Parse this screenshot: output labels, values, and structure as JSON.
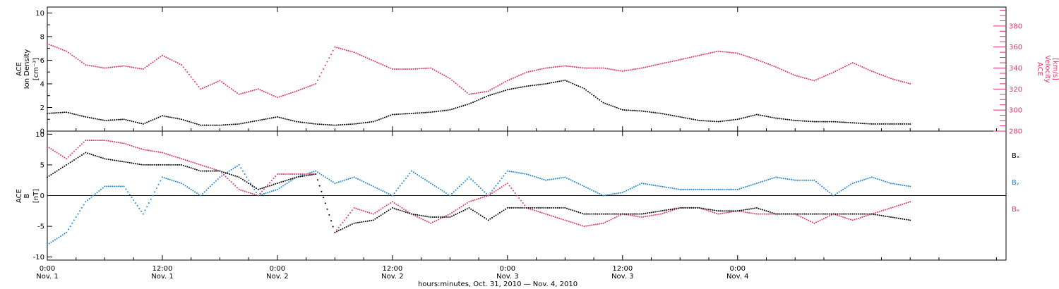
{
  "colors": {
    "black": "#000000",
    "pink": "#e8325f",
    "blue": "#1a86d8"
  },
  "footer": {
    "caption": "hours:minutes, Oct. 31, 2010 — Nov.  4, 2010"
  },
  "chart_data": [
    {
      "type": "scatter",
      "panel": "top",
      "ylabel_left": [
        "ACE",
        "Ion Density",
        "[cm⁻³]"
      ],
      "ylabel_right": [
        "ACE",
        "Velocity",
        "[km/s]"
      ],
      "ylim_left": [
        0,
        10.5
      ],
      "ylim_right": [
        280,
        398
      ],
      "yticks_left": [
        "0",
        "2",
        "4",
        "6",
        "8",
        "10"
      ],
      "yticks_right": [
        "280",
        "300",
        "320",
        "340",
        "360",
        "380"
      ],
      "series": [
        {
          "axis": "left",
          "color": "#000000",
          "points": [
            [
              0,
              1.5
            ],
            [
              2,
              1.6
            ],
            [
              4,
              1.2
            ],
            [
              6,
              0.9
            ],
            [
              8,
              1.0
            ],
            [
              10,
              0.6
            ],
            [
              12,
              1.3
            ],
            [
              14,
              1.0
            ],
            [
              16,
              0.5
            ],
            [
              18,
              0.5
            ],
            [
              20,
              0.6
            ],
            [
              22,
              0.9
            ],
            [
              24,
              1.2
            ],
            [
              26,
              0.8
            ],
            [
              28,
              0.6
            ],
            [
              30,
              0.5
            ],
            [
              32,
              0.6
            ],
            [
              34,
              0.8
            ],
            [
              36,
              1.4
            ],
            [
              38,
              1.5
            ],
            [
              40,
              1.6
            ],
            [
              42,
              1.8
            ],
            [
              44,
              2.3
            ],
            [
              46,
              3.0
            ],
            [
              48,
              3.5
            ],
            [
              50,
              3.8
            ],
            [
              52,
              4.0
            ],
            [
              54,
              4.3
            ],
            [
              56,
              3.6
            ],
            [
              58,
              2.4
            ],
            [
              60,
              1.8
            ],
            [
              62,
              1.7
            ],
            [
              64,
              1.5
            ],
            [
              66,
              1.2
            ],
            [
              68,
              0.9
            ],
            [
              70,
              0.8
            ],
            [
              72,
              1.0
            ],
            [
              74,
              1.4
            ],
            [
              76,
              1.1
            ],
            [
              78,
              0.9
            ],
            [
              80,
              0.8
            ],
            [
              82,
              0.8
            ],
            [
              84,
              0.7
            ],
            [
              86,
              0.6
            ],
            [
              88,
              0.6
            ],
            [
              90,
              0.6
            ]
          ]
        },
        {
          "axis": "right",
          "color": "#e8325f",
          "points": [
            [
              0,
              363
            ],
            [
              2,
              356
            ],
            [
              4,
              343
            ],
            [
              6,
              340
            ],
            [
              8,
              342
            ],
            [
              10,
              339
            ],
            [
              12,
              352
            ],
            [
              14,
              343
            ],
            [
              16,
              320
            ],
            [
              18,
              328
            ],
            [
              20,
              315
            ],
            [
              22,
              320
            ],
            [
              24,
              312
            ],
            [
              26,
              318
            ],
            [
              28,
              325
            ],
            [
              30,
              360
            ],
            [
              32,
              355
            ],
            [
              34,
              347
            ],
            [
              36,
              339
            ],
            [
              38,
              339
            ],
            [
              40,
              340
            ],
            [
              42,
              330
            ],
            [
              44,
              315
            ],
            [
              46,
              318
            ],
            [
              48,
              328
            ],
            [
              50,
              336
            ],
            [
              52,
              340
            ],
            [
              54,
              342
            ],
            [
              56,
              340
            ],
            [
              58,
              340
            ],
            [
              60,
              337
            ],
            [
              62,
              340
            ],
            [
              64,
              344
            ],
            [
              66,
              348
            ],
            [
              68,
              352
            ],
            [
              70,
              356
            ],
            [
              72,
              354
            ],
            [
              74,
              348
            ],
            [
              76,
              341
            ],
            [
              78,
              333
            ],
            [
              80,
              328
            ],
            [
              82,
              336
            ],
            [
              84,
              345
            ],
            [
              86,
              337
            ],
            [
              88,
              330
            ],
            [
              90,
              325
            ]
          ]
        }
      ]
    },
    {
      "type": "scatter",
      "panel": "bottom",
      "ylabel_left": [
        "ACE",
        "B",
        "[nT]"
      ],
      "ylim": [
        -10.5,
        10.5
      ],
      "yticks": [
        "-10",
        "-5",
        "0",
        "5",
        "10"
      ],
      "legend": [
        {
          "label": "Bₓ",
          "color": "#000000"
        },
        {
          "label": "Bᵧ",
          "color": "#1a86d8"
        },
        {
          "label": "Bₔ",
          "color": "#e8325f"
        }
      ],
      "series": [
        {
          "color": "#000000",
          "points": [
            [
              0,
              3
            ],
            [
              2,
              5
            ],
            [
              4,
              7
            ],
            [
              6,
              6
            ],
            [
              8,
              5.5
            ],
            [
              10,
              5
            ],
            [
              12,
              5
            ],
            [
              14,
              5
            ],
            [
              16,
              4
            ],
            [
              18,
              4
            ],
            [
              20,
              3
            ],
            [
              22,
              1
            ],
            [
              24,
              2
            ],
            [
              26,
              3
            ],
            [
              28,
              3.5
            ],
            [
              30,
              -6
            ],
            [
              32,
              -4.5
            ],
            [
              34,
              -4
            ],
            [
              36,
              -2
            ],
            [
              38,
              -3
            ],
            [
              40,
              -3.5
            ],
            [
              42,
              -3.5
            ],
            [
              44,
              -2
            ],
            [
              46,
              -4
            ],
            [
              48,
              -2
            ],
            [
              50,
              -2
            ],
            [
              52,
              -2
            ],
            [
              54,
              -2
            ],
            [
              56,
              -3
            ],
            [
              58,
              -3
            ],
            [
              60,
              -3
            ],
            [
              62,
              -3
            ],
            [
              64,
              -2.5
            ],
            [
              66,
              -2
            ],
            [
              68,
              -2
            ],
            [
              70,
              -2.5
            ],
            [
              72,
              -2.5
            ],
            [
              74,
              -2
            ],
            [
              76,
              -3
            ],
            [
              78,
              -3
            ],
            [
              80,
              -3
            ],
            [
              82,
              -3
            ],
            [
              84,
              -3
            ],
            [
              86,
              -3
            ],
            [
              88,
              -3.5
            ],
            [
              90,
              -4
            ]
          ]
        },
        {
          "color": "#1a86d8",
          "points": [
            [
              0,
              -8
            ],
            [
              2,
              -6
            ],
            [
              4,
              -1
            ],
            [
              6,
              1.5
            ],
            [
              8,
              1.5
            ],
            [
              10,
              -3
            ],
            [
              12,
              3
            ],
            [
              14,
              2
            ],
            [
              16,
              0
            ],
            [
              18,
              3
            ],
            [
              20,
              5
            ],
            [
              22,
              0
            ],
            [
              24,
              1
            ],
            [
              26,
              3
            ],
            [
              28,
              4
            ],
            [
              30,
              2
            ],
            [
              32,
              3
            ],
            [
              34,
              1.5
            ],
            [
              36,
              0
            ],
            [
              38,
              4
            ],
            [
              40,
              2
            ],
            [
              42,
              0
            ],
            [
              44,
              3
            ],
            [
              46,
              0
            ],
            [
              48,
              4
            ],
            [
              50,
              3.5
            ],
            [
              52,
              2.5
            ],
            [
              54,
              3
            ],
            [
              56,
              1.5
            ],
            [
              58,
              0
            ],
            [
              60,
              0.5
            ],
            [
              62,
              2
            ],
            [
              64,
              1.5
            ],
            [
              66,
              1
            ],
            [
              68,
              1
            ],
            [
              70,
              1
            ],
            [
              72,
              1
            ],
            [
              74,
              2
            ],
            [
              76,
              3
            ],
            [
              78,
              2.5
            ],
            [
              80,
              2.5
            ],
            [
              82,
              0
            ],
            [
              84,
              2
            ],
            [
              86,
              3
            ],
            [
              88,
              2
            ],
            [
              90,
              1.5
            ]
          ]
        },
        {
          "color": "#e8325f",
          "points": [
            [
              0,
              8
            ],
            [
              2,
              6
            ],
            [
              4,
              9
            ],
            [
              6,
              9
            ],
            [
              8,
              8.5
            ],
            [
              10,
              7.5
            ],
            [
              12,
              7
            ],
            [
              14,
              6
            ],
            [
              16,
              5
            ],
            [
              18,
              4
            ],
            [
              20,
              1
            ],
            [
              22,
              0
            ],
            [
              24,
              3.5
            ],
            [
              26,
              3.5
            ],
            [
              28,
              3.5
            ],
            [
              30,
              -6
            ],
            [
              32,
              -2
            ],
            [
              34,
              -3
            ],
            [
              36,
              -1
            ],
            [
              38,
              -3
            ],
            [
              40,
              -4.5
            ],
            [
              42,
              -3
            ],
            [
              44,
              -1
            ],
            [
              46,
              0
            ],
            [
              48,
              2
            ],
            [
              50,
              -2
            ],
            [
              52,
              -3
            ],
            [
              54,
              -4
            ],
            [
              56,
              -5
            ],
            [
              58,
              -4.5
            ],
            [
              60,
              -3
            ],
            [
              62,
              -3.5
            ],
            [
              64,
              -3
            ],
            [
              66,
              -2
            ],
            [
              68,
              -2
            ],
            [
              70,
              -3
            ],
            [
              72,
              -2.5
            ],
            [
              74,
              -3
            ],
            [
              76,
              -3
            ],
            [
              78,
              -3
            ],
            [
              80,
              -4.5
            ],
            [
              82,
              -3
            ],
            [
              84,
              -4
            ],
            [
              86,
              -3
            ],
            [
              88,
              -2
            ],
            [
              90,
              -1
            ]
          ]
        }
      ]
    }
  ],
  "xaxis": {
    "xlim_hours": [
      0,
      100
    ],
    "ticks": [
      {
        "h": 0,
        "time": "0:00",
        "date": "Nov. 1"
      },
      {
        "h": 12,
        "time": "12:00",
        "date": "Nov. 1"
      },
      {
        "h": 24,
        "time": "0:00",
        "date": "Nov. 2"
      },
      {
        "h": 36,
        "time": "12:00",
        "date": "Nov. 2"
      },
      {
        "h": 48,
        "time": "0:00",
        "date": "Nov. 3"
      },
      {
        "h": 60,
        "time": "12:00",
        "date": "Nov. 3"
      },
      {
        "h": 72,
        "time": "0:00",
        "date": "Nov. 4"
      }
    ]
  }
}
